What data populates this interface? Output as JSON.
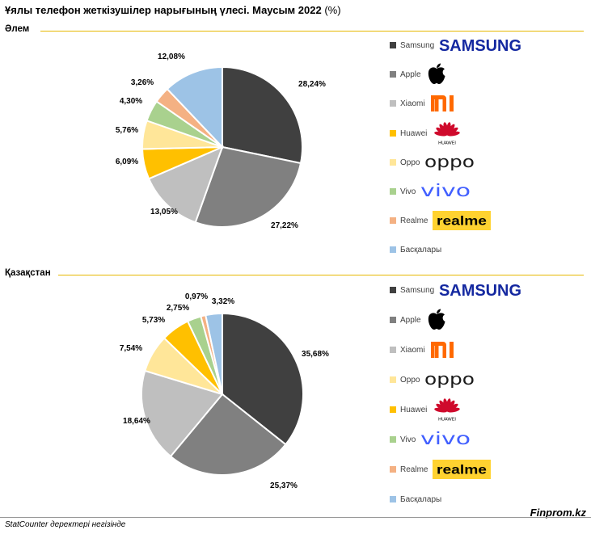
{
  "header": {
    "title_main": "Ұялы телефон жеткізушілер нарығының үлесі. Маусым 2022",
    "title_unit": "(%)"
  },
  "footer": {
    "source": "StatCounter деректері негізінде",
    "brand": "Finprom.kz"
  },
  "colors": {
    "rule": "#e6b800",
    "Samsung": "#404040",
    "Apple": "#808080",
    "Xiaomi": "#bfbfbf",
    "Huawei": "#ffc000",
    "Oppo": "#ffe699",
    "Vivo": "#a9d18e",
    "Realme": "#f4b183",
    "Other": "#9dc3e6"
  },
  "chart_data": [
    {
      "type": "pie",
      "title": "Әлем",
      "labels": [
        "Samsung",
        "Apple",
        "Xiaomi",
        "Huawei",
        "Oppo",
        "Vivo",
        "Realme",
        "Басқалары"
      ],
      "slice_order": [
        "Samsung",
        "Apple",
        "Xiaomi",
        "Huawei",
        "Oppo",
        "Vivo",
        "Realme",
        "Басқалары"
      ],
      "values": [
        28.24,
        27.22,
        13.05,
        6.09,
        5.76,
        4.3,
        3.26,
        12.08
      ],
      "value_labels": [
        "28,24%",
        "27,22%",
        "13,05%",
        "6,09%",
        "5,76%",
        "4,30%",
        "3,26%",
        "12,08%"
      ],
      "legend_order": [
        "Samsung",
        "Apple",
        "Xiaomi",
        "Huawei",
        "Oppo",
        "Vivo",
        "Realme",
        "Басқалары"
      ],
      "legend_placement": "right"
    },
    {
      "type": "pie",
      "title": "Қазақстан",
      "labels": [
        "Samsung",
        "Apple",
        "Xiaomi",
        "Oppo",
        "Huawei",
        "Vivo",
        "Realme",
        "Басқалары"
      ],
      "slice_order": [
        "Samsung",
        "Apple",
        "Xiaomi",
        "Oppo",
        "Huawei",
        "Vivo",
        "Realme",
        "Басқалары"
      ],
      "values": [
        35.68,
        25.37,
        18.64,
        7.54,
        5.73,
        2.75,
        0.97,
        3.32
      ],
      "value_labels": [
        "35,68%",
        "25,37%",
        "18,64%",
        "7,54%",
        "5,73%",
        "2,75%",
        "0,97%",
        "3,32%"
      ],
      "legend_order": [
        "Samsung",
        "Apple",
        "Xiaomi",
        "Oppo",
        "Huawei",
        "Vivo",
        "Realme",
        "Басқалары"
      ],
      "legend_placement": "right"
    }
  ],
  "color_keys": {
    "Samsung": "Samsung",
    "Apple": "Apple",
    "Xiaomi": "Xiaomi",
    "Huawei": "Huawei",
    "Oppo": "Oppo",
    "Vivo": "Vivo",
    "Realme": "Realme",
    "Басқалары": "Other"
  },
  "logos": {
    "Samsung": "samsung-logo",
    "Apple": "apple-logo",
    "Xiaomi": "mi-logo",
    "Huawei": "huawei-logo",
    "Oppo": "oppo-logo",
    "Vivo": "vivo-logo",
    "Realme": "realme-logo",
    "Басқалары": ""
  },
  "logo_text": {
    "Samsung": "SAMSUNG",
    "Xiaomi": "mi",
    "Huawei": "HUAWEI",
    "Oppo": "oppo",
    "Vivo": "vivo",
    "Realme": "realme"
  }
}
